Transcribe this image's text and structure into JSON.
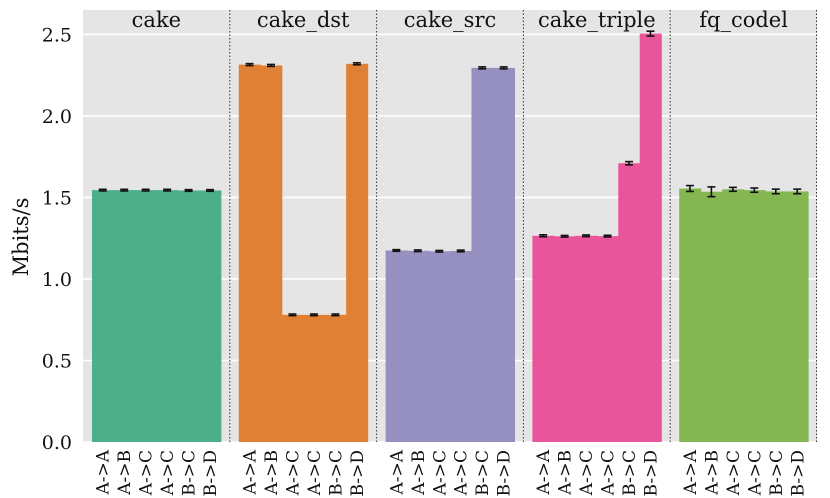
{
  "chart_data": {
    "type": "bar",
    "title": "",
    "ylabel": "Mbits/s",
    "ylim": [
      0,
      2.65
    ],
    "yticks": [
      "0.0",
      "0.5",
      "1.0",
      "1.5",
      "2.0",
      "2.5"
    ],
    "grid": true,
    "categories": [
      "A->A",
      "A->B",
      "A->C",
      "A->C",
      "B->C",
      "B->D"
    ],
    "panels": [
      {
        "name": "cake",
        "color": "#4daf8a",
        "values": [
          1.545,
          1.545,
          1.545,
          1.545,
          1.543,
          1.543
        ],
        "errors": [
          0.005,
          0.005,
          0.005,
          0.005,
          0.005,
          0.005
        ]
      },
      {
        "name": "cake_dst",
        "color": "#e08035",
        "values": [
          2.315,
          2.31,
          0.78,
          0.78,
          0.78,
          2.32
        ],
        "errors": [
          0.006,
          0.006,
          0.005,
          0.005,
          0.005,
          0.006
        ]
      },
      {
        "name": "cake_src",
        "color": "#9590c0",
        "values": [
          1.175,
          1.173,
          1.17,
          1.172,
          2.295,
          2.295
        ],
        "errors": [
          0.005,
          0.005,
          0.005,
          0.005,
          0.006,
          0.006
        ]
      },
      {
        "name": "cake_triple",
        "color": "#e8559a",
        "values": [
          1.265,
          1.262,
          1.265,
          1.263,
          1.71,
          2.505
        ],
        "errors": [
          0.006,
          0.005,
          0.005,
          0.005,
          0.01,
          0.015
        ]
      },
      {
        "name": "fq_codel",
        "color": "#84b652",
        "values": [
          1.555,
          1.535,
          1.55,
          1.545,
          1.537,
          1.537
        ],
        "errors": [
          0.018,
          0.03,
          0.012,
          0.013,
          0.014,
          0.014
        ]
      }
    ]
  }
}
